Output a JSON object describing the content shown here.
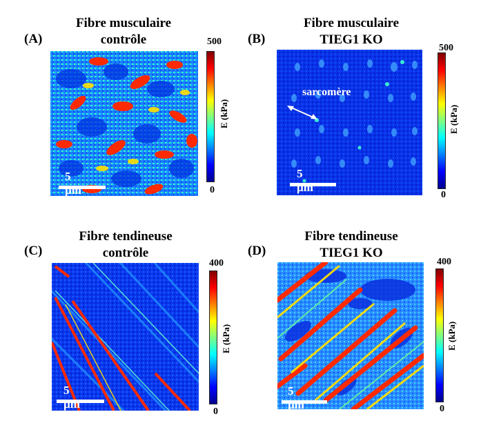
{
  "panels": {
    "A": {
      "label": "(A)",
      "title_line1": "Fibre musculaire",
      "title_line2": "contrôle",
      "scale_label": "5 µm",
      "colorbar": {
        "max": "500",
        "min": "0",
        "unit": "E (kPa)"
      }
    },
    "B": {
      "label": "(B)",
      "title_line1": "Fibre musculaire",
      "title_line2": "TIEG1 KO",
      "scale_label": "5 µm",
      "annotation": "sarcomère",
      "colorbar": {
        "max": "500",
        "min": "0",
        "unit": "E (kPa)"
      }
    },
    "C": {
      "label": "(C)",
      "title_line1": "Fibre tendineuse",
      "title_line2": "contrôle",
      "scale_label": "5 µm",
      "colorbar": {
        "max": "400",
        "min": "0",
        "unit": "E (kPa)"
      }
    },
    "D": {
      "label": "(D)",
      "title_line1": "Fibre tendineuse",
      "title_line2": "TIEG1 KO",
      "scale_label": "5 µm",
      "colorbar": {
        "max": "400",
        "min": "0",
        "unit": "E (kPa)"
      }
    }
  },
  "colors": {
    "jet": [
      "#00008f",
      "#0000ff",
      "#0080ff",
      "#00ffff",
      "#80ff80",
      "#ffff00",
      "#ff8000",
      "#ff0000",
      "#800000"
    ]
  }
}
